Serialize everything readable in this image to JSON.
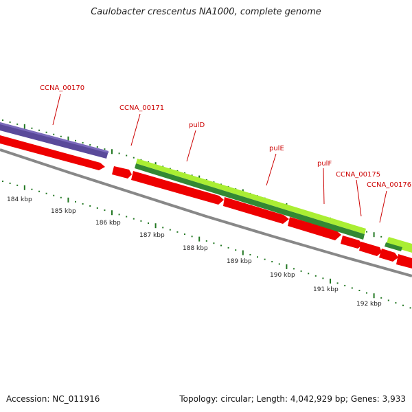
{
  "title": "Caulobacter crescentus NA1000, complete genome",
  "footer": {
    "accession": "Accession: NC_011916",
    "summary": "Topology: circular; Length: 4,042,929 bp; Genes: 3,933"
  },
  "colors": {
    "gene_label": "#cc0000",
    "tick": "#227722",
    "backbone": "#888888",
    "purple_feature": "#5a4a9a",
    "red_feature": "#ee0000",
    "lime_feature": "#aaee33",
    "dark_green_feature": "#338833"
  },
  "kbp_labels": [
    "184 kbp",
    "185 kbp",
    "186 kbp",
    "187 kbp",
    "188 kbp",
    "189 kbp",
    "190 kbp",
    "191 kbp",
    "192 kbp"
  ],
  "gene_labels": [
    "CCNA_00170",
    "CCNA_00171",
    "pulD",
    "pulE",
    "pulF",
    "CCNA_00175",
    "CCNA_00176"
  ]
}
